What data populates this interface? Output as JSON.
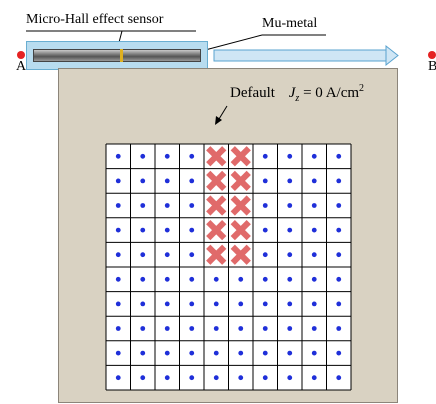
{
  "labels": {
    "sensor": "Micro-Hall effect sensor",
    "metal": "Mu-metal",
    "point_a": "A",
    "point_b": "B",
    "default_prefix": "Default",
    "jz_symbol": "J",
    "jz_subscript": "z",
    "jz_value": " = 0 A/cm",
    "jz_exponent": "2"
  },
  "grid": {
    "rows": 10,
    "cols": 10,
    "default_cells": [
      [
        0,
        4
      ],
      [
        0,
        5
      ],
      [
        1,
        4
      ],
      [
        1,
        5
      ],
      [
        2,
        4
      ],
      [
        2,
        5
      ],
      [
        3,
        4
      ],
      [
        3,
        5
      ],
      [
        4,
        4
      ],
      [
        4,
        5
      ]
    ]
  },
  "colors": {
    "dot": "#1f2fd9",
    "cross": "#e06a6a",
    "panel": "#d9d2c2",
    "arrow_fill": "#cfe6f5",
    "arrow_stroke": "#5aa3cf",
    "marker": "#e52222"
  }
}
